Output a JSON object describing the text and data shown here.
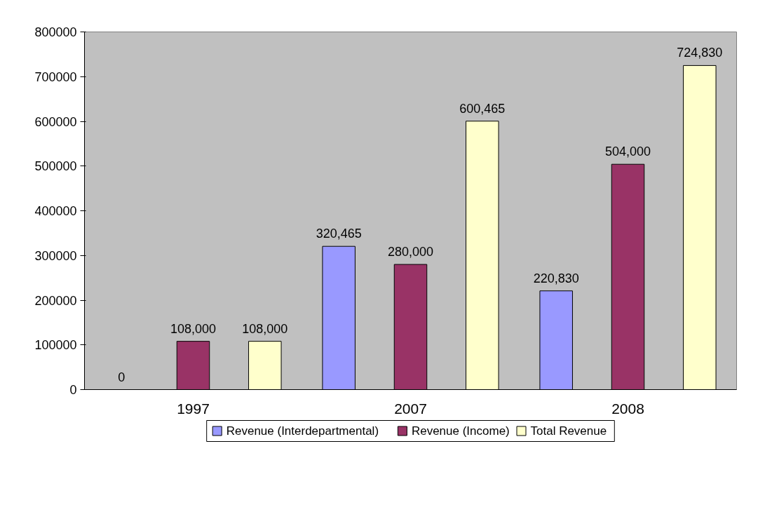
{
  "chart_data": {
    "type": "bar",
    "categories": [
      "1997",
      "2007",
      "2008"
    ],
    "series": [
      {
        "name": "Revenue (Interdepartmental)",
        "color": "#9999ff",
        "values": [
          0,
          320465,
          220830
        ],
        "value_labels": [
          "0",
          "320,465",
          "220,830"
        ]
      },
      {
        "name": "Revenue (Income)",
        "color": "#993366",
        "values": [
          108000,
          280000,
          504000
        ],
        "value_labels": [
          "108,000",
          "280,000",
          "504,000"
        ]
      },
      {
        "name": "Total Revenue",
        "color": "#ffffcc",
        "values": [
          108000,
          600465,
          724830
        ],
        "value_labels": [
          "108,000",
          "600,465",
          "724,830"
        ]
      }
    ],
    "ylim": [
      0,
      800000
    ],
    "yticks": [
      0,
      100000,
      200000,
      300000,
      400000,
      500000,
      600000,
      700000,
      800000
    ],
    "grid": false,
    "legend": "bottom"
  }
}
